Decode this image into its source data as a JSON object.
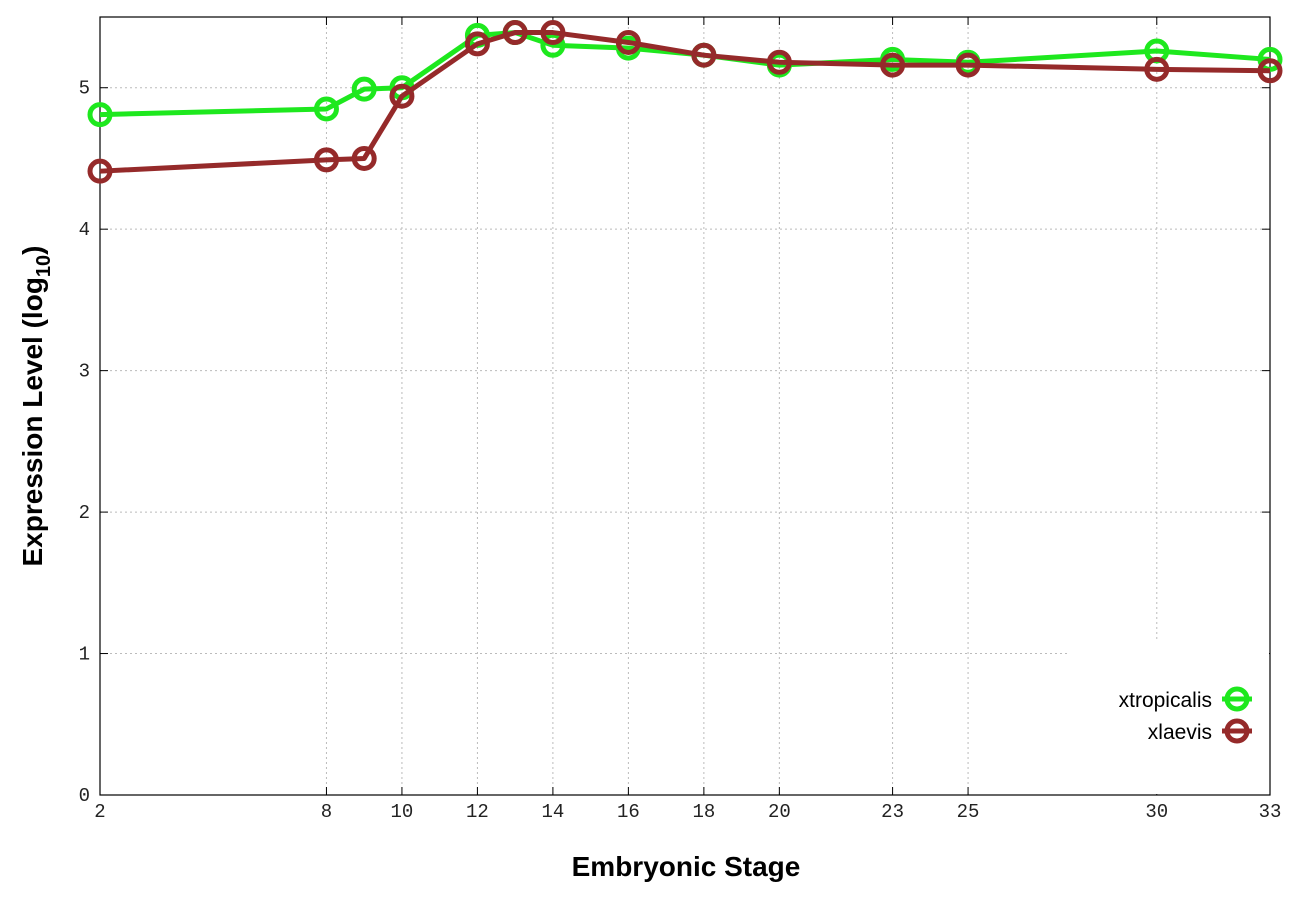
{
  "chart_data": {
    "type": "line",
    "x_label": "Embryonic Stage",
    "y_label": [
      "Expression Level (log",
      "10",
      ")"
    ],
    "x": [
      2,
      8,
      9,
      10,
      12,
      13,
      14,
      16,
      18,
      20,
      23,
      25,
      30,
      33
    ],
    "series": [
      {
        "name": "xtropicalis",
        "color": "#1ee81e",
        "values": [
          4.81,
          4.85,
          4.99,
          5.0,
          5.37,
          5.39,
          5.3,
          5.28,
          5.23,
          5.16,
          5.2,
          5.18,
          5.26,
          5.2
        ]
      },
      {
        "name": "xlaevis",
        "color": "#952a2a",
        "values": [
          4.41,
          4.49,
          4.5,
          4.94,
          5.31,
          5.39,
          5.39,
          5.32,
          5.23,
          5.18,
          5.16,
          5.16,
          5.13,
          5.12
        ]
      }
    ],
    "xlim": [
      2,
      33
    ],
    "xticks": [
      2,
      8,
      10,
      12,
      14,
      16,
      18,
      20,
      23,
      25,
      30,
      33
    ],
    "ylim": [
      0,
      5.5
    ],
    "yticks": [
      0,
      1,
      2,
      3,
      4,
      5
    ],
    "grid": true,
    "legend": "lower right"
  }
}
